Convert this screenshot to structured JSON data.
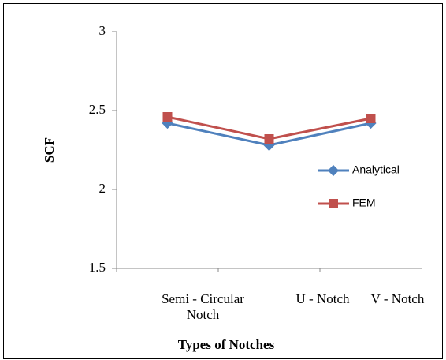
{
  "chart_data": {
    "type": "line",
    "categories": [
      "Semi - Circular Notch",
      "U - Notch",
      "V - Notch"
    ],
    "series": [
      {
        "name": "Analytical",
        "color": "#4f81bd",
        "values": [
          2.42,
          2.28,
          2.42
        ]
      },
      {
        "name": "FEM",
        "color": "#c0504d",
        "values": [
          2.46,
          2.32,
          2.45
        ]
      }
    ],
    "ylim": [
      1.5,
      3
    ],
    "yticks": [
      1.5,
      2,
      2.5,
      3
    ],
    "xlabel": "Types of Notches",
    "ylabel": "SCF",
    "legend": "right"
  }
}
